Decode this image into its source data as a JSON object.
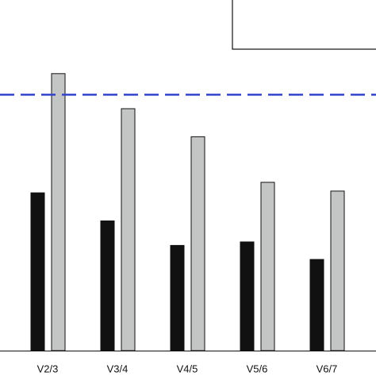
{
  "chart_data": {
    "type": "bar",
    "categories": [
      "V2/3",
      "V3/4",
      "V4/5",
      "V5/6",
      "V6/7"
    ],
    "series": [
      {
        "color": "#111111",
        "values": [
          45,
          37,
          30,
          31,
          26
        ]
      },
      {
        "color": "#c4c6c5",
        "values": [
          79,
          69,
          61,
          48,
          45.5
        ]
      }
    ],
    "reference_line": {
      "value": 73,
      "color": "#3344cc"
    },
    "ylim": [
      0,
      100
    ]
  }
}
